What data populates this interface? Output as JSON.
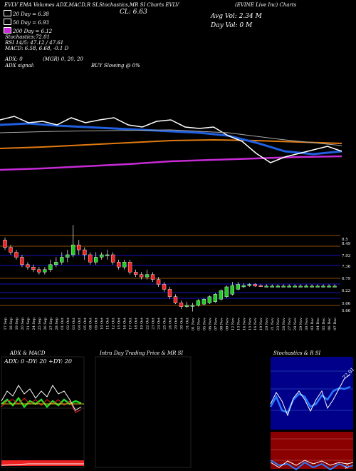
{
  "header": {
    "top_line": "EVLV EMA Volumes ADX,MACD,R SI,Stochastics,MR SI Charts EVLV",
    "company": "(EVINE Live Inc) Charts",
    "close": "CL: 6.63",
    "avg_vol": "Avg Vol: 2.34 M",
    "day_vol": "Day Vol: 0 M",
    "ema20": "20 Day = 6.38",
    "ema50": "50 Day = 6.93",
    "ema200": "200 Day = 6.12",
    "stoch": "Stochastics:72.01",
    "rsi": "RSI 14/5: 47.12 / 47.61",
    "macd": "MACD: 6.58, 6.68, -0.1 D",
    "adx": "ADX: 0",
    "adx_signal": "ADX signal:",
    "mrsi": "(MGR) 0, 20, 20",
    "signal": "BUY Slowing @ 0%"
  },
  "colors": {
    "ema20": "#ffffff",
    "ema50": "#1f5fe0",
    "ema200": "#e07a10",
    "ema_long": "#c62bd6",
    "up": "#22cc22",
    "down": "#ee2222",
    "res_line": "#b8650e",
    "sup_line": "#1a1aff"
  },
  "price_levels": [
    "8.5",
    "8.49",
    "7.93",
    "7.36",
    "6.79",
    "6.23",
    "5.66",
    "5.66"
  ],
  "chart_data": {
    "type": "candlestick",
    "x": [
      "17 Sep",
      "18 Sep",
      "19 Sep",
      "20 Sep",
      "21 Sep",
      "24 Sep",
      "25 Sep",
      "26 Sep",
      "27 Sep",
      "28 Sep",
      "01 Oct",
      "02 Oct",
      "03 Oct",
      "04 Oct",
      "05 Oct",
      "08 Oct",
      "09 Oct",
      "10 Oct",
      "11 Oct",
      "12 Oct",
      "15 Oct",
      "16 Oct",
      "17 Oct",
      "18 Oct",
      "19 Oct",
      "22 Oct",
      "23 Oct",
      "24 Oct",
      "25 Oct",
      "26 Oct",
      "29 Oct",
      "30 Oct",
      "31 Oct",
      "01 Nov",
      "02 Nov",
      "05 Nov",
      "06 Nov",
      "07 Nov",
      "08 Nov",
      "09 Nov",
      "12 Nov",
      "13 Nov",
      "14 Nov",
      "15 Nov",
      "16 Nov",
      "19 Nov",
      "20 Nov",
      "21 Nov",
      "23 Nov",
      "26 Nov",
      "27 Nov",
      "28 Nov",
      "29 Nov",
      "30 Nov",
      "03 Dec",
      "04 Dec",
      "05 Dec",
      "06 Dec",
      "07 Dec"
    ],
    "open": [
      8.5,
      8.2,
      8.0,
      7.8,
      7.5,
      7.4,
      7.3,
      7.2,
      7.3,
      7.5,
      7.6,
      7.8,
      7.9,
      8.3,
      8.1,
      7.9,
      7.6,
      7.8,
      7.9,
      7.9,
      7.6,
      7.4,
      7.6,
      7.2,
      7.1,
      7.0,
      7.1,
      6.9,
      6.7,
      6.5,
      6.2,
      5.95,
      5.8,
      5.85,
      5.85,
      5.9,
      5.95,
      6.0,
      6.1,
      6.2,
      6.3,
      6.5,
      6.6,
      6.65,
      6.7,
      6.65,
      6.6,
      6.6,
      6.6,
      6.6,
      6.6,
      6.6,
      6.6,
      6.6,
      6.6,
      6.6,
      6.6,
      6.6,
      6.6
    ],
    "high": [
      8.6,
      8.3,
      8.1,
      7.9,
      7.6,
      7.5,
      7.4,
      7.4,
      7.7,
      7.8,
      8.0,
      8.1,
      9.1,
      8.5,
      8.2,
      8.0,
      8.0,
      8.0,
      8.1,
      8.0,
      7.7,
      7.7,
      7.7,
      7.3,
      7.2,
      7.3,
      7.2,
      7.0,
      6.8,
      6.6,
      6.3,
      6.05,
      6.0,
      5.95,
      6.1,
      6.15,
      6.25,
      6.35,
      6.5,
      6.65,
      6.8,
      6.8,
      6.75,
      6.75,
      6.75,
      6.7,
      6.7,
      6.7,
      6.7,
      6.7,
      6.7,
      6.7,
      6.7,
      6.7,
      6.7,
      6.7,
      6.7,
      6.7,
      6.7
    ],
    "low": [
      8.1,
      7.9,
      7.7,
      7.4,
      7.3,
      7.2,
      7.1,
      7.1,
      7.2,
      7.4,
      7.5,
      7.6,
      7.8,
      7.9,
      7.7,
      7.5,
      7.5,
      7.7,
      7.7,
      7.5,
      7.3,
      7.3,
      7.1,
      7.0,
      6.9,
      6.9,
      6.8,
      6.6,
      6.4,
      6.1,
      5.9,
      5.7,
      5.75,
      5.6,
      5.8,
      5.85,
      5.9,
      5.95,
      6.05,
      6.15,
      6.25,
      6.45,
      6.55,
      6.6,
      6.6,
      6.6,
      6.6,
      6.6,
      6.6,
      6.6,
      6.6,
      6.6,
      6.6,
      6.6,
      6.6,
      6.6,
      6.6,
      6.6,
      6.6
    ],
    "close": [
      8.2,
      8.0,
      7.8,
      7.5,
      7.4,
      7.3,
      7.2,
      7.3,
      7.5,
      7.6,
      7.8,
      7.9,
      8.3,
      8.1,
      7.9,
      7.6,
      7.8,
      7.9,
      7.9,
      7.6,
      7.4,
      7.6,
      7.2,
      7.1,
      7.0,
      7.1,
      6.9,
      6.7,
      6.5,
      6.2,
      5.95,
      5.8,
      5.85,
      5.85,
      6.05,
      6.1,
      6.2,
      6.3,
      6.45,
      6.6,
      6.65,
      6.7,
      6.65,
      6.7,
      6.63,
      6.63,
      6.63,
      6.63,
      6.63,
      6.63,
      6.63,
      6.63,
      6.63,
      6.63,
      6.63,
      6.63,
      6.63,
      6.63,
      6.63
    ],
    "ylim": [
      5.5,
      9.2
    ]
  },
  "panels": {
    "adx_title": "ADX & MACD",
    "adx_values": "ADX: 0  -DY: 20  +DY: 20",
    "mrsi_title": "Intra Day Trading Price & MR SI",
    "stoch_title": "Stochastics & R SI",
    "stoch_label": "72.01",
    "rsi_label": "47"
  }
}
